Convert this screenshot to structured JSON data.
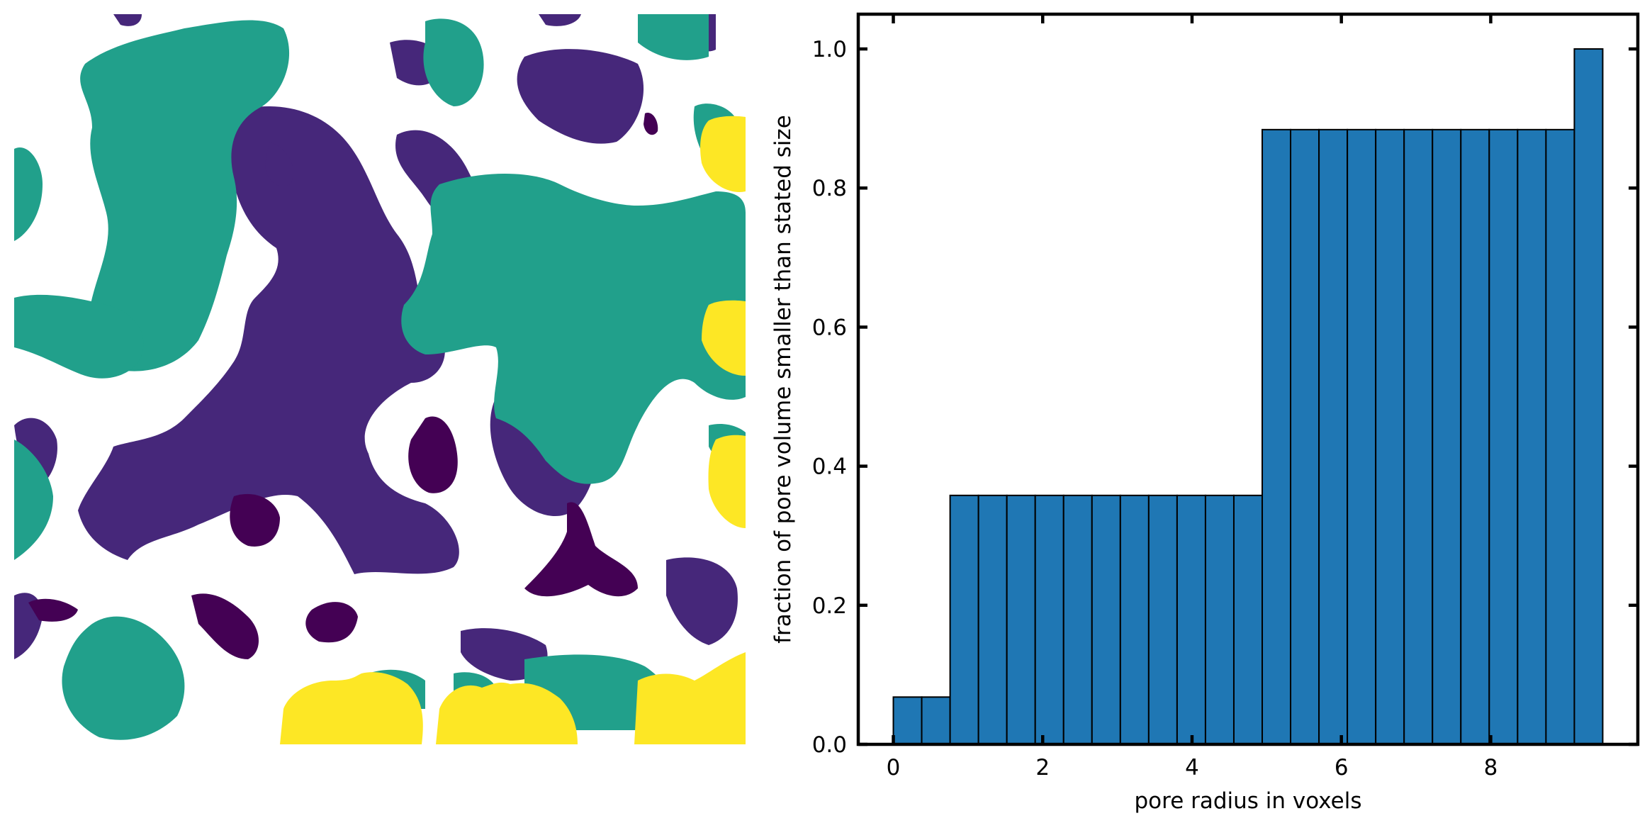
{
  "chart_data": [
    {
      "type": "heatmap",
      "description_colors": {
        "solid": "#ffffff",
        "level_1": "#440154",
        "level_2": "#46277a",
        "level_3": "#21a08b",
        "level_4": "#fde725"
      },
      "axes_visible": false
    },
    {
      "type": "bar",
      "title": "",
      "xlabel": "pore radius in voxels",
      "ylabel": "fraction of pore volume smaller than stated size",
      "xlim": [
        -0.47,
        9.97
      ],
      "ylim": [
        0,
        1.05
      ],
      "xticks": [
        0,
        2,
        4,
        6,
        8
      ],
      "xtick_labels": [
        "0",
        "2",
        "4",
        "6",
        "8"
      ],
      "yticks": [
        0.0,
        0.2,
        0.4,
        0.6,
        0.8,
        1.0
      ],
      "ytick_labels": [
        "0.0",
        "0.2",
        "0.4",
        "0.6",
        "0.8",
        "1.0"
      ],
      "bar_width": 0.38,
      "bar_color": "#1f77b4",
      "edge_color": "#000000",
      "x": [
        0.0,
        0.38,
        0.76,
        1.14,
        1.52,
        1.9,
        2.28,
        2.66,
        3.04,
        3.42,
        3.8,
        4.18,
        4.56,
        4.94,
        5.32,
        5.7,
        6.08,
        6.46,
        6.84,
        7.22,
        7.6,
        7.98,
        8.36,
        8.74,
        9.12
      ],
      "values": [
        0.068,
        0.068,
        0.358,
        0.358,
        0.358,
        0.358,
        0.358,
        0.358,
        0.358,
        0.358,
        0.358,
        0.358,
        0.358,
        0.884,
        0.884,
        0.884,
        0.884,
        0.884,
        0.884,
        0.884,
        0.884,
        0.884,
        0.884,
        0.884,
        1.0
      ]
    }
  ]
}
